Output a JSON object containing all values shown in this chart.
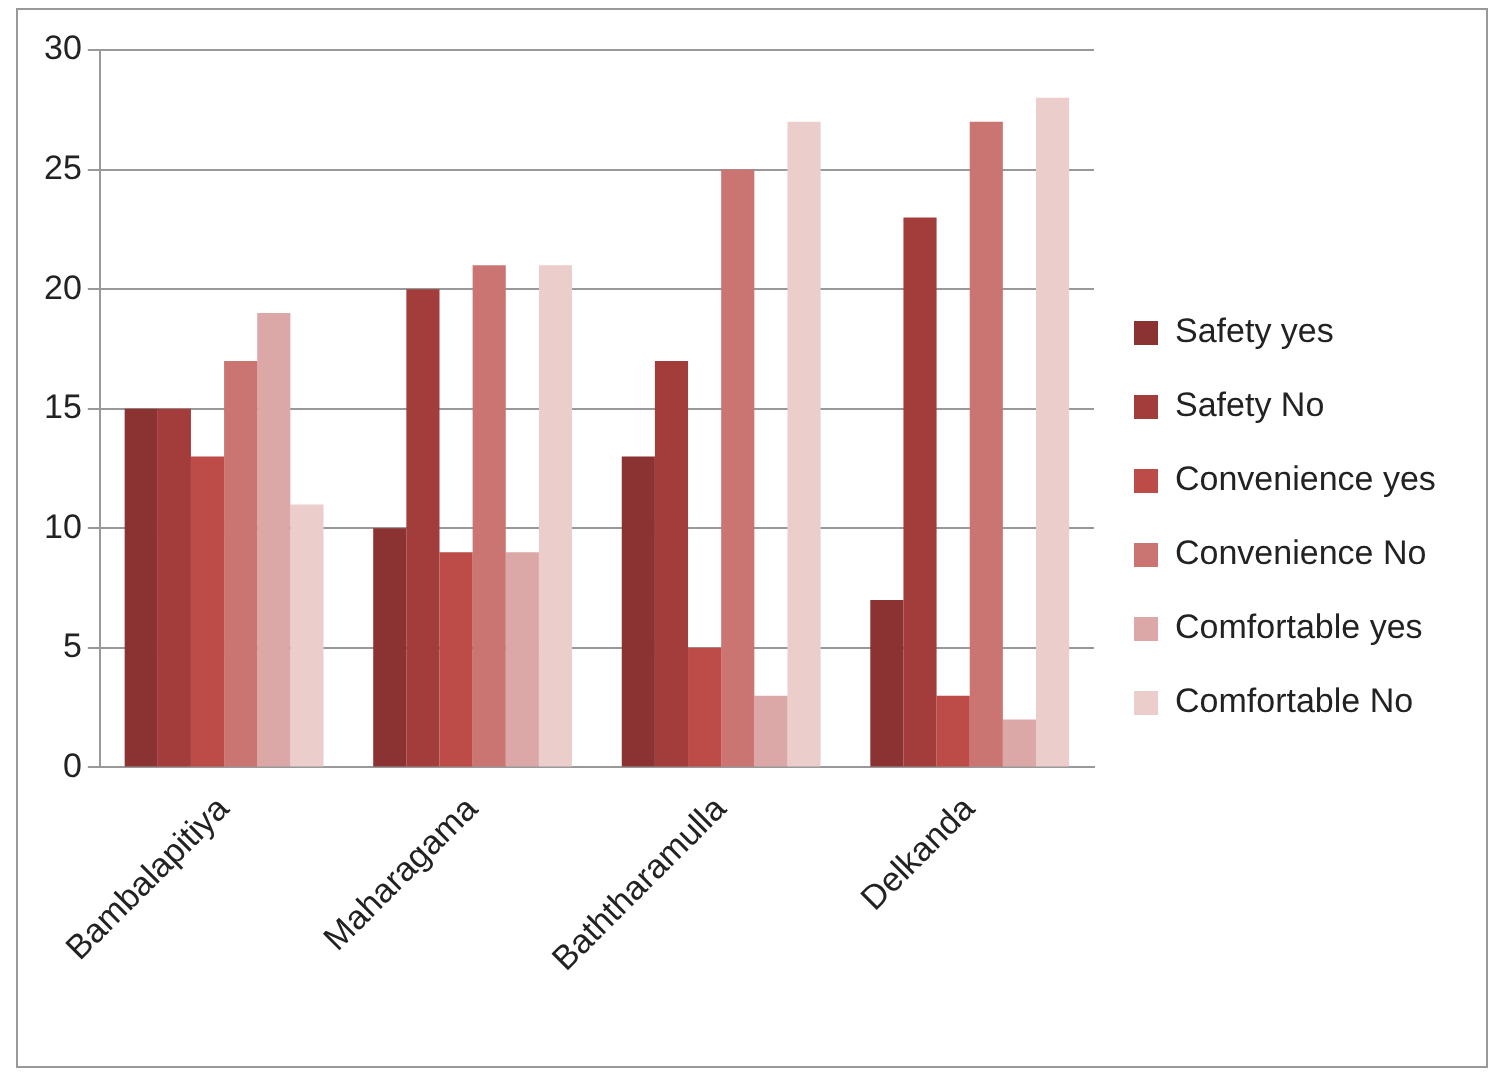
{
  "chart_data": {
    "type": "bar",
    "categories": [
      "Bambalapitiya",
      "Maharagama",
      "Baththaramulla",
      "Delkanda"
    ],
    "series": [
      {
        "name": "Safety yes",
        "color": "#8b3232",
        "values": [
          15,
          10,
          13,
          7
        ]
      },
      {
        "name": "Safety No",
        "color": "#a23d3b",
        "values": [
          15,
          20,
          17,
          23
        ]
      },
      {
        "name": "Convenience yes",
        "color": "#bd4b48",
        "values": [
          13,
          9,
          5,
          3
        ]
      },
      {
        "name": "Convenience No",
        "color": "#cb7573",
        "values": [
          17,
          21,
          25,
          27
        ]
      },
      {
        "name": "Comfortable yes",
        "color": "#dba8a7",
        "values": [
          19,
          9,
          3,
          2
        ]
      },
      {
        "name": "Comfortable No",
        "color": "#ebcdcc",
        "values": [
          11,
          21,
          27,
          28
        ]
      }
    ],
    "ylim": [
      0,
      30
    ],
    "yticks": [
      0,
      5,
      10,
      15,
      20,
      25,
      30
    ],
    "grid": "y",
    "legend": "right"
  }
}
